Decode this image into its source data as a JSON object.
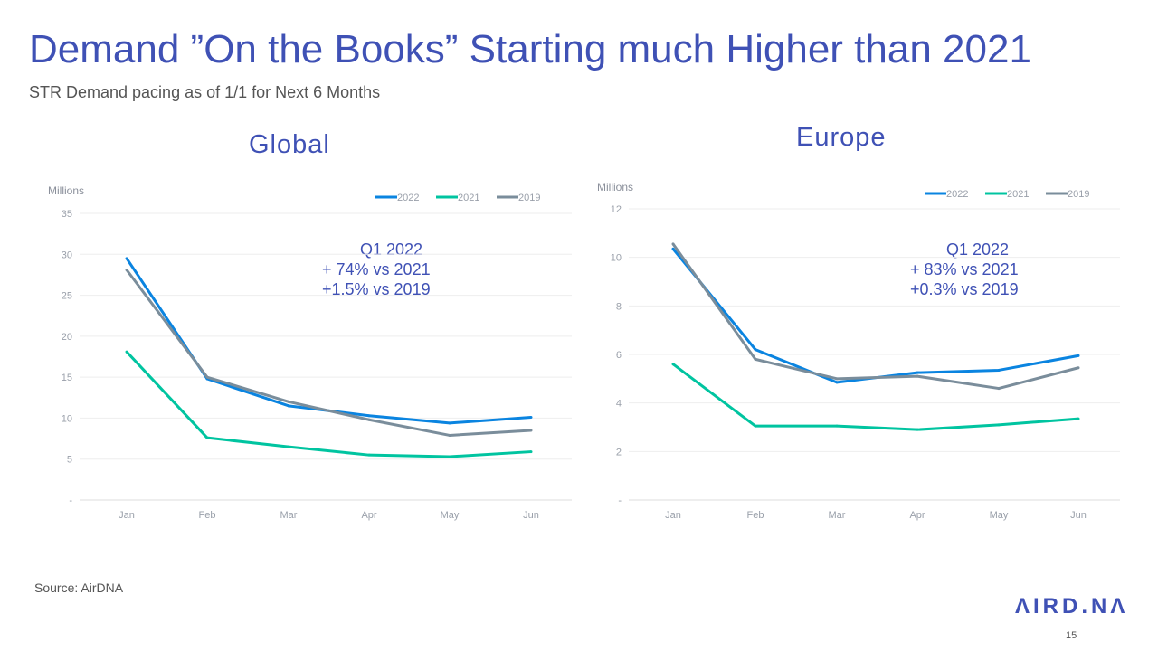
{
  "title": "Demand ”On the Books” Starting much Higher than 2021",
  "subtitle": "STR Demand pacing as of 1/1 for Next 6 Months",
  "source": "Source: AirDNA",
  "logo": "AIRDNA",
  "page_number": "15",
  "colors": {
    "2022": "#0a84e0",
    "2021": "#00c4a0",
    "2019": "#7a8d9b",
    "title": "#3f51b5"
  },
  "chart_data": [
    {
      "type": "line",
      "title": "Global",
      "ylabel": "Millions",
      "categories": [
        "Jan",
        "Feb",
        "Mar",
        "Apr",
        "May",
        "Jun"
      ],
      "ylim": [
        0,
        35
      ],
      "yticks": [
        "-",
        "5",
        "10",
        "15",
        "20",
        "25",
        "30",
        "35"
      ],
      "grid": true,
      "legend": "top-right",
      "annotation": [
        "Q1 2022",
        "+ 74% vs 2021",
        "+1.5% vs 2019"
      ],
      "series": [
        {
          "name": "2022",
          "values": [
            29.5,
            14.8,
            11.5,
            10.3,
            9.4,
            10.1
          ]
        },
        {
          "name": "2021",
          "values": [
            18.1,
            7.6,
            6.5,
            5.5,
            5.3,
            5.9
          ]
        },
        {
          "name": "2019",
          "values": [
            28.1,
            15.0,
            12.0,
            9.8,
            7.9,
            8.5
          ]
        }
      ]
    },
    {
      "type": "line",
      "title": "Europe",
      "ylabel": "Millions",
      "categories": [
        "Jan",
        "Feb",
        "Mar",
        "Apr",
        "May",
        "Jun"
      ],
      "ylim": [
        0,
        12
      ],
      "yticks": [
        "-",
        "2",
        "4",
        "6",
        "8",
        "10",
        "12"
      ],
      "grid": true,
      "legend": "top-right",
      "annotation": [
        "Q1 2022",
        "+ 83% vs 2021",
        "+0.3% vs 2019"
      ],
      "series": [
        {
          "name": "2022",
          "values": [
            10.35,
            6.2,
            4.85,
            5.25,
            5.35,
            5.95
          ]
        },
        {
          "name": "2021",
          "values": [
            5.6,
            3.05,
            3.05,
            2.9,
            3.1,
            3.35
          ]
        },
        {
          "name": "2019",
          "values": [
            10.55,
            5.8,
            5.0,
            5.1,
            4.6,
            5.45
          ]
        }
      ]
    }
  ]
}
